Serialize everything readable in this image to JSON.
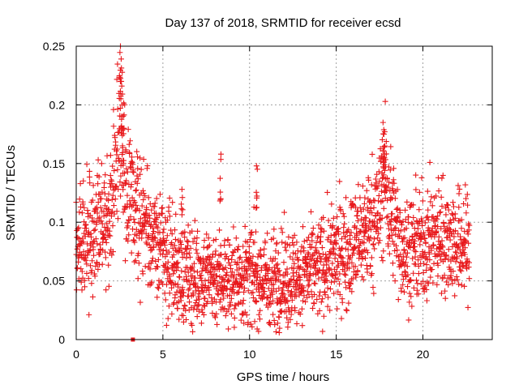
{
  "chart_data": {
    "type": "scatter",
    "title": "Day 137 of 2018, SRMTID for receiver ecsd",
    "xlabel": "GPS time / hours",
    "ylabel": "SRMTID / TECUs",
    "xlim": [
      0,
      24
    ],
    "ylim": [
      0,
      0.25
    ],
    "xticks": [
      "0",
      "5",
      "10",
      "15",
      "20"
    ],
    "yticks": [
      "0",
      "0.05",
      "0.1",
      "0.15",
      "0.2",
      "0.25"
    ],
    "grid": true,
    "marker": "plus",
    "color": "#e8191c",
    "series": [
      {
        "name": "SRMTID",
        "profile_x": [
          0,
          0.5,
          1,
          1.5,
          2,
          2.3,
          2.5,
          2.7,
          3,
          3.5,
          4,
          4.5,
          5,
          5.5,
          6,
          7,
          8,
          9,
          10,
          11,
          12,
          13,
          14,
          15,
          16,
          16.5,
          17,
          17.5,
          17.8,
          18,
          18.5,
          19,
          20,
          21,
          22,
          22.7
        ],
        "profile_y": [
          0.075,
          0.085,
          0.09,
          0.095,
          0.11,
          0.15,
          0.19,
          0.16,
          0.12,
          0.11,
          0.1,
          0.085,
          0.075,
          0.065,
          0.055,
          0.055,
          0.055,
          0.05,
          0.055,
          0.05,
          0.05,
          0.055,
          0.06,
          0.07,
          0.08,
          0.09,
          0.1,
          0.11,
          0.14,
          0.12,
          0.09,
          0.075,
          0.08,
          0.09,
          0.08,
          0.08
        ],
        "spread": 0.025,
        "start_hours": 0,
        "end_hours": 22.7,
        "count": 2200,
        "peaks": [
          {
            "x": 2.55,
            "y": 0.25
          },
          {
            "x": 2.6,
            "y": 0.22
          },
          {
            "x": 2.65,
            "y": 0.2
          },
          {
            "x": 2.7,
            "y": 0.18
          },
          {
            "x": 17.7,
            "y": 0.185
          },
          {
            "x": 17.75,
            "y": 0.175
          },
          {
            "x": 17.8,
            "y": 0.165
          },
          {
            "x": 8.35,
            "y": 0.158
          },
          {
            "x": 10.4,
            "y": 0.148
          },
          {
            "x": 6.1,
            "y": 0.128
          }
        ]
      },
      {
        "name": "marker",
        "points": [
          {
            "x": 3.27,
            "y": 0
          }
        ],
        "marker": "square"
      }
    ]
  }
}
